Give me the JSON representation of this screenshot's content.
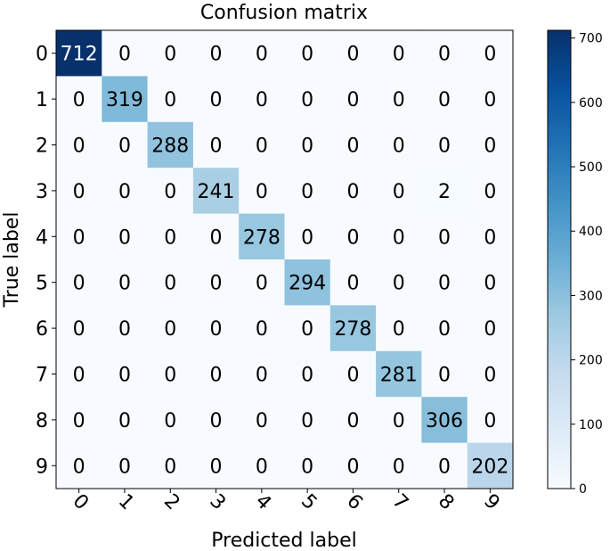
{
  "chart_data": {
    "type": "heatmap",
    "title": "Confusion matrix",
    "xlabel": "Predicted label",
    "ylabel": "True label",
    "x_categories": [
      "0",
      "1",
      "2",
      "3",
      "4",
      "5",
      "6",
      "7",
      "8",
      "9"
    ],
    "y_categories": [
      "0",
      "1",
      "2",
      "3",
      "4",
      "5",
      "6",
      "7",
      "8",
      "9"
    ],
    "matrix": [
      [
        712,
        0,
        0,
        0,
        0,
        0,
        0,
        0,
        0,
        0
      ],
      [
        0,
        319,
        0,
        0,
        0,
        0,
        0,
        0,
        0,
        0
      ],
      [
        0,
        0,
        288,
        0,
        0,
        0,
        0,
        0,
        0,
        0
      ],
      [
        0,
        0,
        0,
        241,
        0,
        0,
        0,
        0,
        2,
        0
      ],
      [
        0,
        0,
        0,
        0,
        278,
        0,
        0,
        0,
        0,
        0
      ],
      [
        0,
        0,
        0,
        0,
        0,
        294,
        0,
        0,
        0,
        0
      ],
      [
        0,
        0,
        0,
        0,
        0,
        0,
        278,
        0,
        0,
        0
      ],
      [
        0,
        0,
        0,
        0,
        0,
        0,
        0,
        281,
        0,
        0
      ],
      [
        0,
        0,
        0,
        0,
        0,
        0,
        0,
        0,
        306,
        0
      ],
      [
        0,
        0,
        0,
        0,
        0,
        0,
        0,
        0,
        0,
        202
      ]
    ],
    "colorscale": "Blues",
    "colorbar": {
      "min": 0,
      "max": 712,
      "ticks": [
        "0",
        "100",
        "200",
        "300",
        "400",
        "500",
        "600",
        "700"
      ]
    },
    "grid": false
  }
}
